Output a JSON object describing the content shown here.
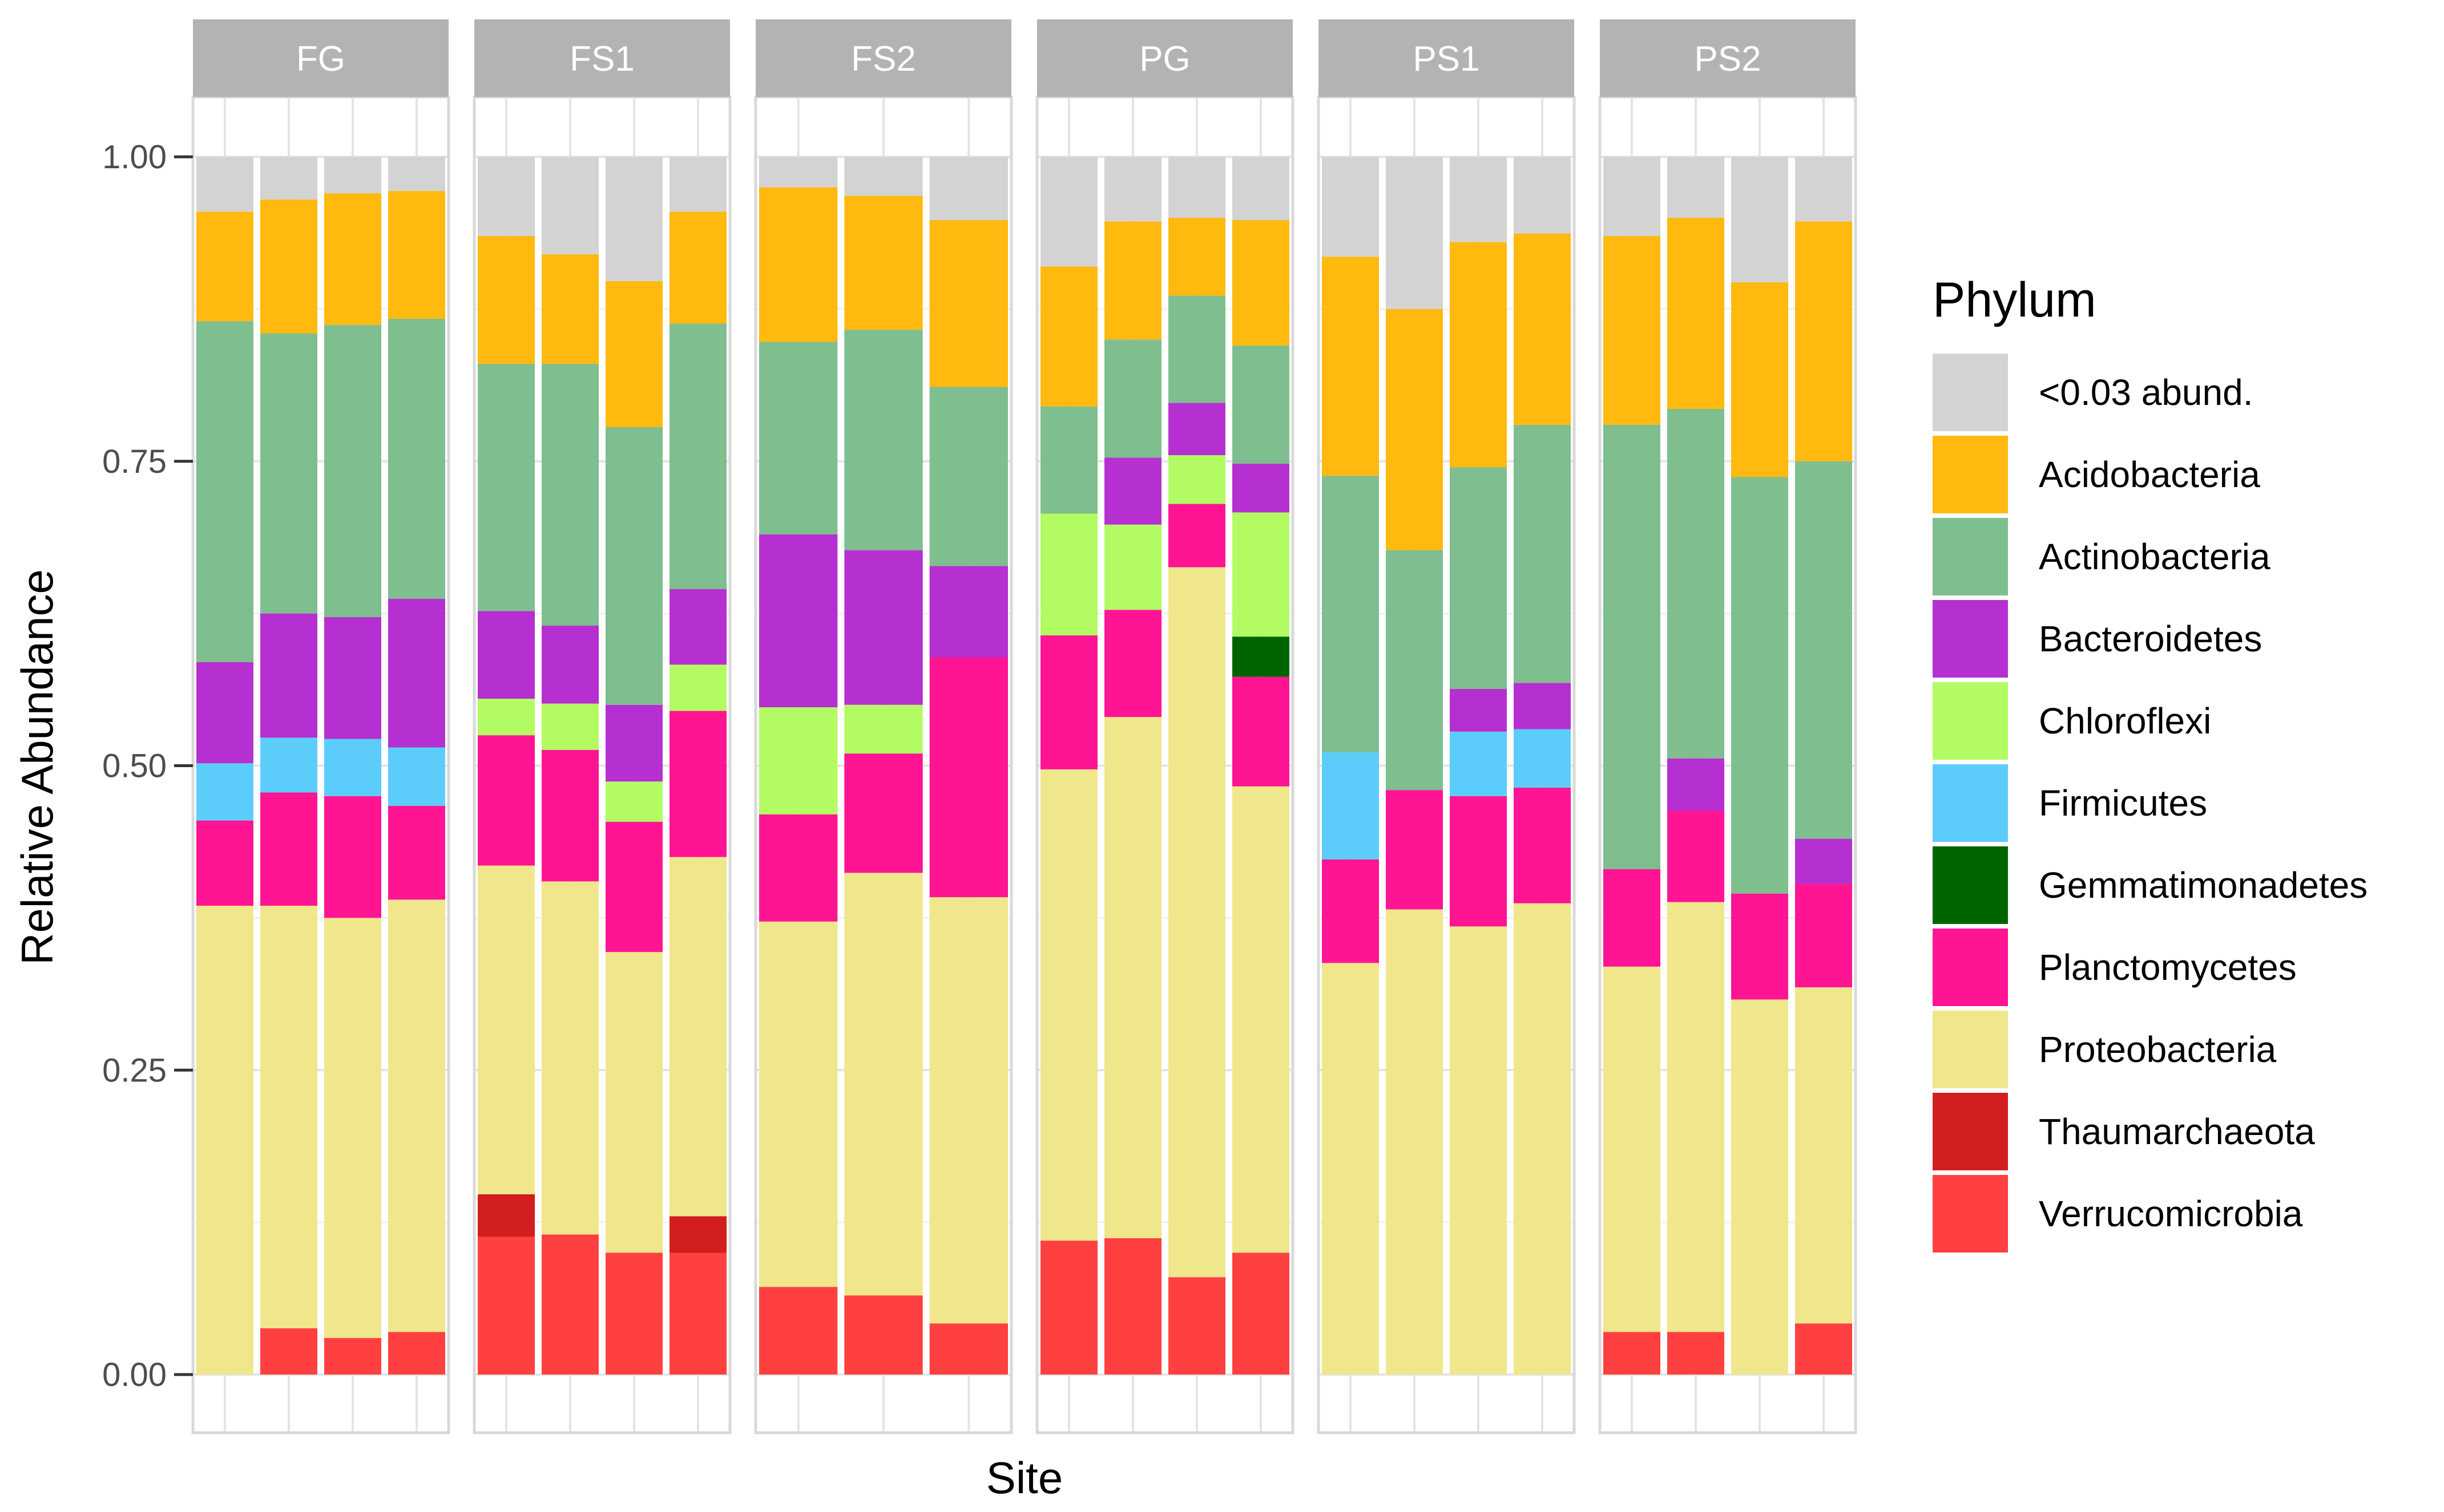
{
  "chart_data": {
    "type": "bar",
    "stacked": true,
    "faceted": true,
    "ylabel": "Relative Abundance",
    "xlabel": "Site",
    "ylim": [
      0,
      1.07
    ],
    "yticks": [
      0,
      0.25,
      0.5,
      0.75,
      1.0
    ],
    "ytick_labels": [
      "0.00",
      "0.25",
      "0.50",
      "0.75",
      "1.00"
    ],
    "legend": {
      "title": "Phylum",
      "position": "right",
      "entries": [
        {
          "name": "<0.03 abund.",
          "color": "#d3d3d3"
        },
        {
          "name": "Acidobacteria",
          "color": "#ffb90f"
        },
        {
          "name": "Actinobacteria",
          "color": "#7ebe8f"
        },
        {
          "name": "Bacteroidetes",
          "color": "#b62fd0"
        },
        {
          "name": "Chloroflexi",
          "color": "#b3fb63"
        },
        {
          "name": "Firmicutes",
          "color": "#5ccdfa"
        },
        {
          "name": "Gemmatimonadetes",
          "color": "#006400"
        },
        {
          "name": "Planctomycetes",
          "color": "#ff1493"
        },
        {
          "name": "Proteobacteria",
          "color": "#f0e68c"
        },
        {
          "name": "Thaumarchaeota",
          "color": "#d21e1e"
        },
        {
          "name": "Verrucomicrobia",
          "color": "#ff4040"
        }
      ]
    },
    "stack_order": [
      "Verrucomicrobia",
      "Thaumarchaeota",
      "Proteobacteria",
      "Planctomycetes",
      "Gemmatimonadetes",
      "Firmicutes",
      "Chloroflexi",
      "Bacteroidetes",
      "Actinobacteria",
      "Acidobacteria",
      "<0.03 abund."
    ],
    "panels": [
      {
        "name": "FG",
        "bars": [
          {
            "Verrucomicrobia": 0,
            "Thaumarchaeota": 0,
            "Proteobacteria": 0.385,
            "Planctomycetes": 0.07,
            "Gemmatimonadetes": 0,
            "Firmicutes": 0.047,
            "Chloroflexi": 0,
            "Bacteroidetes": 0.083,
            "Actinobacteria": 0.28,
            "Acidobacteria": 0.09,
            "<0.03 abund.": 0.045
          },
          {
            "Verrucomicrobia": 0.038,
            "Thaumarchaeota": 0,
            "Proteobacteria": 0.347,
            "Planctomycetes": 0.093,
            "Gemmatimonadetes": 0,
            "Firmicutes": 0.045,
            "Chloroflexi": 0,
            "Bacteroidetes": 0.102,
            "Actinobacteria": 0.23,
            "Acidobacteria": 0.11,
            "<0.03 abund.": 0.035
          },
          {
            "Verrucomicrobia": 0.03,
            "Thaumarchaeota": 0,
            "Proteobacteria": 0.345,
            "Planctomycetes": 0.1,
            "Gemmatimonadetes": 0,
            "Firmicutes": 0.047,
            "Chloroflexi": 0,
            "Bacteroidetes": 0.1,
            "Actinobacteria": 0.24,
            "Acidobacteria": 0.108,
            "<0.03 abund.": 0.03
          },
          {
            "Verrucomicrobia": 0.035,
            "Thaumarchaeota": 0,
            "Proteobacteria": 0.355,
            "Planctomycetes": 0.077,
            "Gemmatimonadetes": 0,
            "Firmicutes": 0.048,
            "Chloroflexi": 0,
            "Bacteroidetes": 0.122,
            "Actinobacteria": 0.23,
            "Acidobacteria": 0.105,
            "<0.03 abund.": 0.028
          }
        ]
      },
      {
        "name": "FS1",
        "bars": [
          {
            "Verrucomicrobia": 0.113,
            "Thaumarchaeota": 0.035,
            "Proteobacteria": 0.27,
            "Planctomycetes": 0.107,
            "Gemmatimonadetes": 0,
            "Firmicutes": 0,
            "Chloroflexi": 0.03,
            "Bacteroidetes": 0.072,
            "Actinobacteria": 0.203,
            "Acidobacteria": 0.105,
            "<0.03 abund.": 0.065
          },
          {
            "Verrucomicrobia": 0.115,
            "Thaumarchaeota": 0,
            "Proteobacteria": 0.29,
            "Planctomycetes": 0.108,
            "Gemmatimonadetes": 0,
            "Firmicutes": 0,
            "Chloroflexi": 0.038,
            "Bacteroidetes": 0.064,
            "Actinobacteria": 0.215,
            "Acidobacteria": 0.09,
            "<0.03 abund.": 0.08
          },
          {
            "Verrucomicrobia": 0.1,
            "Thaumarchaeota": 0,
            "Proteobacteria": 0.247,
            "Planctomycetes": 0.107,
            "Gemmatimonadetes": 0,
            "Firmicutes": 0,
            "Chloroflexi": 0.033,
            "Bacteroidetes": 0.063,
            "Actinobacteria": 0.228,
            "Acidobacteria": 0.12,
            "<0.03 abund.": 0.102
          },
          {
            "Verrucomicrobia": 0.1,
            "Thaumarchaeota": 0.03,
            "Proteobacteria": 0.295,
            "Planctomycetes": 0.12,
            "Gemmatimonadetes": 0,
            "Firmicutes": 0,
            "Chloroflexi": 0.038,
            "Bacteroidetes": 0.062,
            "Actinobacteria": 0.218,
            "Acidobacteria": 0.092,
            "<0.03 abund.": 0.045
          }
        ]
      },
      {
        "name": "FS2",
        "bars": [
          {
            "Verrucomicrobia": 0.072,
            "Thaumarchaeota": 0,
            "Proteobacteria": 0.3,
            "Planctomycetes": 0.088,
            "Gemmatimonadetes": 0,
            "Firmicutes": 0,
            "Chloroflexi": 0.088,
            "Bacteroidetes": 0.142,
            "Actinobacteria": 0.158,
            "Acidobacteria": 0.127,
            "<0.03 abund.": 0.025
          },
          {
            "Verrucomicrobia": 0.065,
            "Thaumarchaeota": 0,
            "Proteobacteria": 0.347,
            "Planctomycetes": 0.098,
            "Gemmatimonadetes": 0,
            "Firmicutes": 0,
            "Chloroflexi": 0.04,
            "Bacteroidetes": 0.127,
            "Actinobacteria": 0.181,
            "Acidobacteria": 0.11,
            "<0.03 abund.": 0.032
          },
          {
            "Verrucomicrobia": 0.042,
            "Thaumarchaeota": 0,
            "Proteobacteria": 0.35,
            "Planctomycetes": 0.197,
            "Gemmatimonadetes": 0,
            "Firmicutes": 0,
            "Chloroflexi": 0,
            "Bacteroidetes": 0.075,
            "Actinobacteria": 0.147,
            "Acidobacteria": 0.137,
            "<0.03 abund.": 0.052
          }
        ]
      },
      {
        "name": "PG",
        "bars": [
          {
            "Verrucomicrobia": 0.11,
            "Thaumarchaeota": 0,
            "Proteobacteria": 0.387,
            "Planctomycetes": 0.11,
            "Gemmatimonadetes": 0,
            "Firmicutes": 0,
            "Chloroflexi": 0.1,
            "Bacteroidetes": 0,
            "Actinobacteria": 0.088,
            "Acidobacteria": 0.115,
            "<0.03 abund.": 0.09
          },
          {
            "Verrucomicrobia": 0.112,
            "Thaumarchaeota": 0,
            "Proteobacteria": 0.428,
            "Planctomycetes": 0.088,
            "Gemmatimonadetes": 0,
            "Firmicutes": 0,
            "Chloroflexi": 0.07,
            "Bacteroidetes": 0.055,
            "Actinobacteria": 0.097,
            "Acidobacteria": 0.097,
            "<0.03 abund.": 0.053
          },
          {
            "Verrucomicrobia": 0.08,
            "Thaumarchaeota": 0,
            "Proteobacteria": 0.583,
            "Planctomycetes": 0.052,
            "Gemmatimonadetes": 0,
            "Firmicutes": 0,
            "Chloroflexi": 0.04,
            "Bacteroidetes": 0.043,
            "Actinobacteria": 0.088,
            "Acidobacteria": 0.064,
            "<0.03 abund.": 0.05
          },
          {
            "Verrucomicrobia": 0.1,
            "Thaumarchaeota": 0,
            "Proteobacteria": 0.383,
            "Planctomycetes": 0.09,
            "Gemmatimonadetes": 0.033,
            "Firmicutes": 0,
            "Chloroflexi": 0.102,
            "Bacteroidetes": 0.04,
            "Actinobacteria": 0.097,
            "Acidobacteria": 0.103,
            "<0.03 abund.": 0.052
          }
        ]
      },
      {
        "name": "PS1",
        "bars": [
          {
            "Verrucomicrobia": 0,
            "Thaumarchaeota": 0,
            "Proteobacteria": 0.338,
            "Planctomycetes": 0.085,
            "Gemmatimonadetes": 0,
            "Firmicutes": 0.088,
            "Chloroflexi": 0,
            "Bacteroidetes": 0,
            "Actinobacteria": 0.227,
            "Acidobacteria": 0.18,
            "<0.03 abund.": 0.082
          },
          {
            "Verrucomicrobia": 0,
            "Thaumarchaeota": 0,
            "Proteobacteria": 0.382,
            "Planctomycetes": 0.098,
            "Gemmatimonadetes": 0,
            "Firmicutes": 0,
            "Chloroflexi": 0,
            "Bacteroidetes": 0,
            "Actinobacteria": 0.197,
            "Acidobacteria": 0.198,
            "<0.03 abund.": 0.125
          },
          {
            "Verrucomicrobia": 0,
            "Thaumarchaeota": 0,
            "Proteobacteria": 0.368,
            "Planctomycetes": 0.107,
            "Gemmatimonadetes": 0,
            "Firmicutes": 0.053,
            "Chloroflexi": 0,
            "Bacteroidetes": 0.035,
            "Actinobacteria": 0.182,
            "Acidobacteria": 0.185,
            "<0.03 abund.": 0.07
          },
          {
            "Verrucomicrobia": 0,
            "Thaumarchaeota": 0,
            "Proteobacteria": 0.387,
            "Planctomycetes": 0.095,
            "Gemmatimonadetes": 0,
            "Firmicutes": 0.048,
            "Chloroflexi": 0,
            "Bacteroidetes": 0.038,
            "Actinobacteria": 0.212,
            "Acidobacteria": 0.157,
            "<0.03 abund.": 0.063
          }
        ]
      },
      {
        "name": "PS2",
        "bars": [
          {
            "Verrucomicrobia": 0.035,
            "Thaumarchaeota": 0,
            "Proteobacteria": 0.3,
            "Planctomycetes": 0.08,
            "Gemmatimonadetes": 0,
            "Firmicutes": 0,
            "Chloroflexi": 0,
            "Bacteroidetes": 0,
            "Actinobacteria": 0.365,
            "Acidobacteria": 0.155,
            "<0.03 abund.": 0.065
          },
          {
            "Verrucomicrobia": 0.035,
            "Thaumarchaeota": 0,
            "Proteobacteria": 0.353,
            "Planctomycetes": 0.075,
            "Gemmatimonadetes": 0,
            "Firmicutes": 0,
            "Chloroflexi": 0,
            "Bacteroidetes": 0.043,
            "Actinobacteria": 0.287,
            "Acidobacteria": 0.157,
            "<0.03 abund.": 0.05
          },
          {
            "Verrucomicrobia": 0,
            "Thaumarchaeota": 0,
            "Proteobacteria": 0.308,
            "Planctomycetes": 0.087,
            "Gemmatimonadetes": 0,
            "Firmicutes": 0,
            "Chloroflexi": 0,
            "Bacteroidetes": 0,
            "Actinobacteria": 0.342,
            "Acidobacteria": 0.16,
            "<0.03 abund.": 0.103
          },
          {
            "Verrucomicrobia": 0.042,
            "Thaumarchaeota": 0,
            "Proteobacteria": 0.276,
            "Planctomycetes": 0.085,
            "Gemmatimonadetes": 0,
            "Firmicutes": 0,
            "Chloroflexi": 0,
            "Bacteroidetes": 0.037,
            "Actinobacteria": 0.31,
            "Acidobacteria": 0.197,
            "<0.03 abund.": 0.053
          }
        ]
      }
    ]
  }
}
